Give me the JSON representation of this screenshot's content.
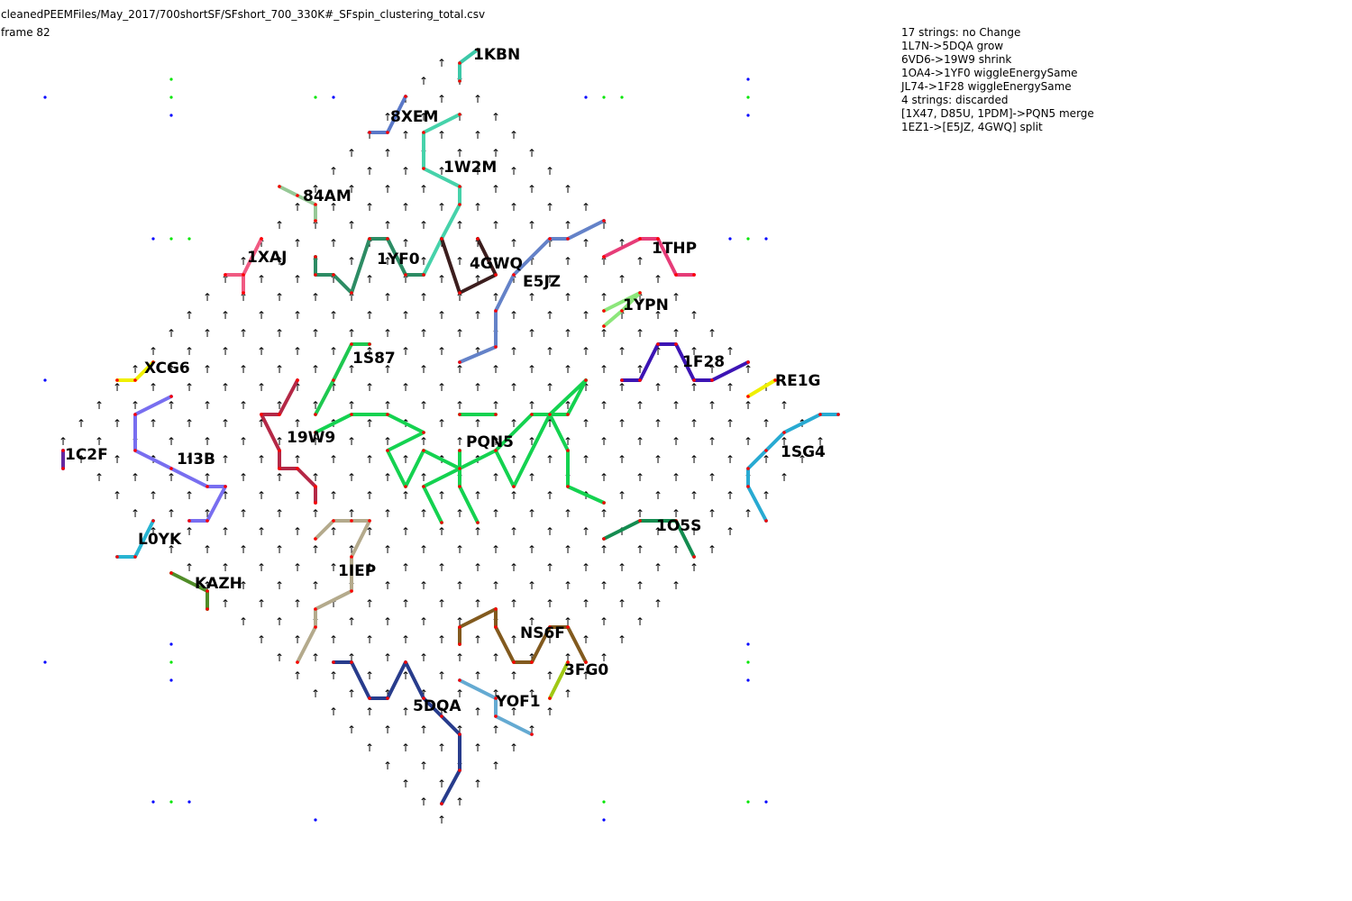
{
  "header": {
    "file_path": "cleanedPEEMFiles/May_2017/700shortSF/SFshort_700_330K#_SFspin_clustering_total.csv",
    "frame_label": "frame 82"
  },
  "log_lines": [
    "17 strings: no Change",
    "1L7N->5DQA grow",
    "6VD6->19W9 shrink",
    "1OA4->1YF0 wiggleEnergySame",
    "JL74->1F28 wiggleEnergySame",
    "4 strings: discarded",
    "[1X47, D85U, 1PDM]->PQN5 merge",
    "1EZ1->[E5JZ, 4GWQ] split"
  ],
  "strings": [
    {
      "id": "1KBN",
      "color": "#3cc8a8"
    },
    {
      "id": "8XEM",
      "color": "#5a78c8"
    },
    {
      "id": "1W2M",
      "color": "#46d2aa"
    },
    {
      "id": "84AM",
      "color": "#96c896"
    },
    {
      "id": "1XAJ",
      "color": "#f05a82"
    },
    {
      "id": "1YF0",
      "color": "#2d8c64"
    },
    {
      "id": "4GWQ",
      "color": "#3c1e1e"
    },
    {
      "id": "E5JZ",
      "color": "#6482c8"
    },
    {
      "id": "1THP",
      "color": "#e63c78"
    },
    {
      "id": "1YPN",
      "color": "#8ce67a"
    },
    {
      "id": "1S87",
      "color": "#1ec850"
    },
    {
      "id": "XCG6",
      "color": "#f0f000"
    },
    {
      "id": "1F28",
      "color": "#3c14b4"
    },
    {
      "id": "RE1G",
      "color": "#f0f000"
    },
    {
      "id": "19W9",
      "color": "#b42846"
    },
    {
      "id": "PQN5",
      "color": "#14d250"
    },
    {
      "id": "1C2F",
      "color": "#6428a0"
    },
    {
      "id": "1I3B",
      "color": "#786ef0"
    },
    {
      "id": "1SG4",
      "color": "#28aad2"
    },
    {
      "id": "1O5S",
      "color": "#148c50"
    },
    {
      "id": "L0YK",
      "color": "#28b4d2"
    },
    {
      "id": "KAZH",
      "color": "#508c28"
    },
    {
      "id": "1IEP",
      "color": "#b4aa8c"
    },
    {
      "id": "NS6F",
      "color": "#825a1e"
    },
    {
      "id": "3FG0",
      "color": "#a0c814"
    },
    {
      "id": "5DQA",
      "color": "#283c8c"
    },
    {
      "id": "YOF1",
      "color": "#64aad2"
    }
  ],
  "colors": {
    "background": "#ffffff",
    "arrow": "#000000",
    "node_red": "#ff0000",
    "node_green": "#00e600",
    "node_blue": "#0000ff"
  }
}
